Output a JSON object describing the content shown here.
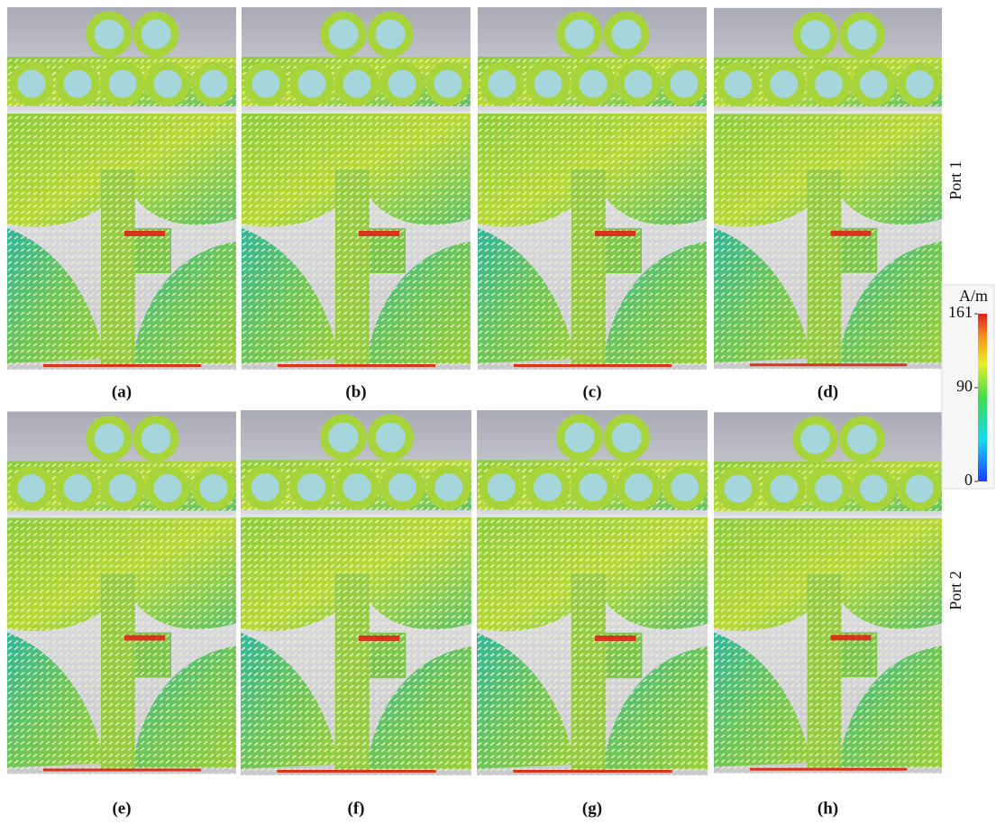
{
  "panels": [
    {
      "label": "(a)"
    },
    {
      "label": "(b)"
    },
    {
      "label": "(c)"
    },
    {
      "label": "(d)"
    },
    {
      "label": "(e)"
    },
    {
      "label": "(f)"
    },
    {
      "label": "(g)"
    },
    {
      "label": "(h)"
    }
  ],
  "rows": [
    {
      "label": "Port 1"
    },
    {
      "label": "Port 2"
    }
  ],
  "colorbar": {
    "unit": "A/m",
    "ticks": [
      0,
      90,
      161
    ]
  }
}
